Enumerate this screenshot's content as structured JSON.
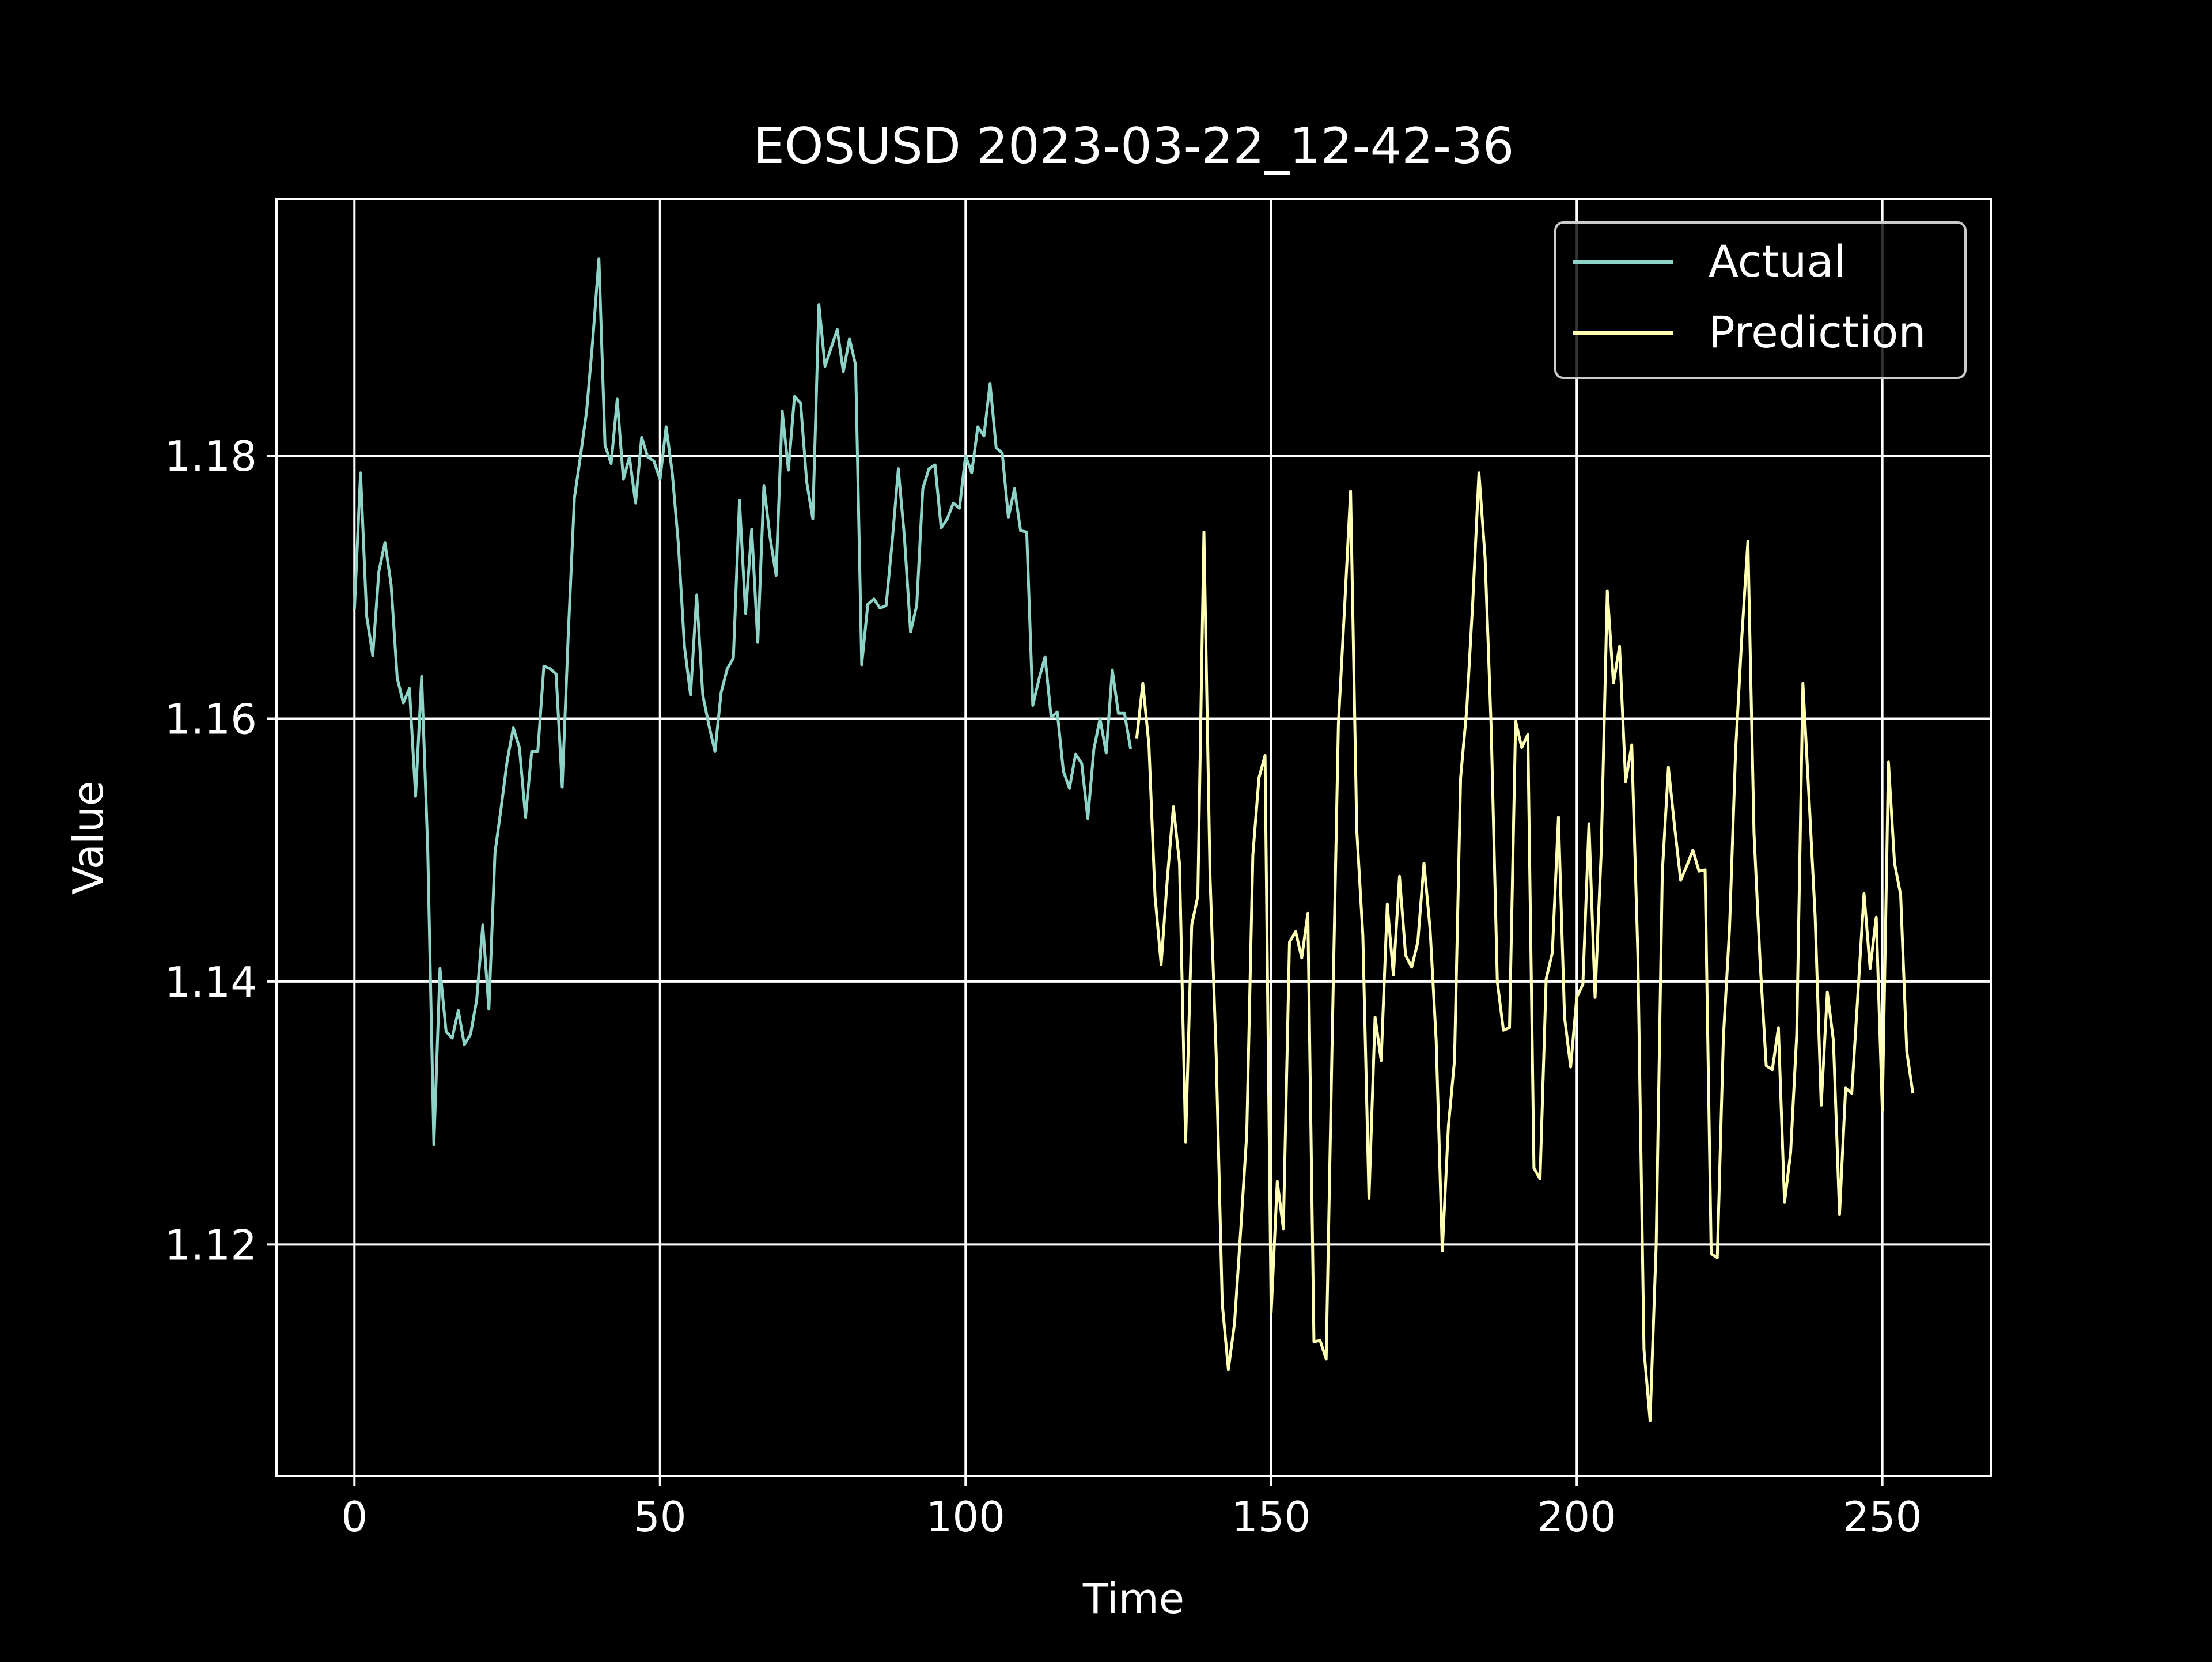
{
  "chart_data": {
    "type": "line",
    "title": "EOSUSD 2023-03-22_12-42-36",
    "xlabel": "Time",
    "ylabel": "Value",
    "xlim": [
      -12.75,
      267.75
    ],
    "ylim": [
      1.1024,
      1.1995
    ],
    "x_ticks": [
      0,
      50,
      100,
      150,
      200,
      250
    ],
    "x_tick_labels": [
      "0",
      "50",
      "100",
      "150",
      "200",
      "250"
    ],
    "y_ticks": [
      1.12,
      1.14,
      1.16,
      1.18
    ],
    "y_tick_labels": [
      "1.12",
      "1.14",
      "1.16",
      "1.18"
    ],
    "grid": true,
    "legend_position": "top-right",
    "colors": {
      "background": "#000000",
      "foreground": "#ffffff",
      "actual": "#8dd3c7",
      "prediction": "#feffb3"
    },
    "series": [
      {
        "name": "Actual",
        "color": "#8dd3c7",
        "x_start": 0,
        "values": [
          1.1683,
          1.1787,
          1.1678,
          1.1648,
          1.1712,
          1.1734,
          1.1702,
          1.1631,
          1.1612,
          1.1623,
          1.1541,
          1.1632,
          1.15,
          1.1276,
          1.141,
          1.1362,
          1.1357,
          1.1378,
          1.1352,
          1.136,
          1.1386,
          1.1443,
          1.1379,
          1.1498,
          1.1532,
          1.1568,
          1.1593,
          1.1578,
          1.1525,
          1.1575,
          1.1575,
          1.164,
          1.1638,
          1.1634,
          1.1548,
          1.1665,
          1.1768,
          1.18,
          1.1834,
          1.1888,
          1.195,
          1.1808,
          1.1794,
          1.1843,
          1.1782,
          1.1799,
          1.1764,
          1.1814,
          1.1799,
          1.1796,
          1.1782,
          1.1822,
          1.1787,
          1.1733,
          1.1655,
          1.1618,
          1.1694,
          1.1618,
          1.1595,
          1.1575,
          1.162,
          1.1638,
          1.1646,
          1.1766,
          1.168,
          1.1744,
          1.1658,
          1.1777,
          1.1738,
          1.1709,
          1.1834,
          1.1789,
          1.1845,
          1.184,
          1.178,
          1.1752,
          1.1915,
          1.1868,
          1.1882,
          1.1896,
          1.1864,
          1.1889,
          1.1869,
          1.1641,
          1.1687,
          1.1691,
          1.1684,
          1.1686,
          1.1735,
          1.179,
          1.1738,
          1.1666,
          1.1686,
          1.1775,
          1.179,
          1.1793,
          1.1745,
          1.1752,
          1.1764,
          1.176,
          1.18,
          1.1787,
          1.1822,
          1.1815,
          1.1855,
          1.1806,
          1.1802,
          1.1753,
          1.1775,
          1.1743,
          1.1742,
          1.161,
          1.163,
          1.1647,
          1.1601,
          1.1605,
          1.156,
          1.1547,
          1.1573,
          1.1566,
          1.1524,
          1.1577,
          1.16,
          1.1574,
          1.1637,
          1.1604,
          1.1604,
          1.1577
        ]
      },
      {
        "name": "Prediction",
        "color": "#feffb3",
        "x_start": 128,
        "values": [
          1.1585,
          1.1627,
          1.158,
          1.1465,
          1.1413,
          1.1478,
          1.1533,
          1.149,
          1.1278,
          1.1443,
          1.1465,
          1.1742,
          1.148,
          1.1345,
          1.1155,
          1.1105,
          1.114,
          1.121,
          1.1284,
          1.1496,
          1.1555,
          1.1572,
          1.1148,
          1.1248,
          1.1212,
          1.143,
          1.1438,
          1.1418,
          1.1452,
          1.1126,
          1.1127,
          1.1113,
          1.136,
          1.1596,
          1.1683,
          1.1773,
          1.1515,
          1.1435,
          1.1235,
          1.1373,
          1.134,
          1.1459,
          1.1405,
          1.148,
          1.142,
          1.1411,
          1.143,
          1.149,
          1.144,
          1.1355,
          1.1195,
          1.129,
          1.134,
          1.1555,
          1.1607,
          1.169,
          1.1787,
          1.1722,
          1.1592,
          1.14,
          1.1363,
          1.1365,
          1.1598,
          1.1578,
          1.1588,
          1.1258,
          1.125,
          1.1402,
          1.1422,
          1.1525,
          1.1373,
          1.1335,
          1.1388,
          1.1398,
          1.152,
          1.1388,
          1.1498,
          1.1697,
          1.1627,
          1.1655,
          1.1552,
          1.158,
          1.142,
          1.112,
          1.1066,
          1.12,
          1.1483,
          1.1563,
          1.1518,
          1.1477,
          1.1488,
          1.15,
          1.1484,
          1.1485,
          1.1193,
          1.119,
          1.1358,
          1.144,
          1.1576,
          1.1662,
          1.1735,
          1.1513,
          1.1415,
          1.1336,
          1.1333,
          1.1365,
          1.1232,
          1.127,
          1.136,
          1.1627,
          1.154,
          1.145,
          1.1306,
          1.1392,
          1.1355,
          1.1223,
          1.1319,
          1.1315,
          1.139,
          1.1467,
          1.141,
          1.1449,
          1.1302,
          1.1567,
          1.149,
          1.1466,
          1.1347,
          1.1315
        ]
      }
    ]
  }
}
